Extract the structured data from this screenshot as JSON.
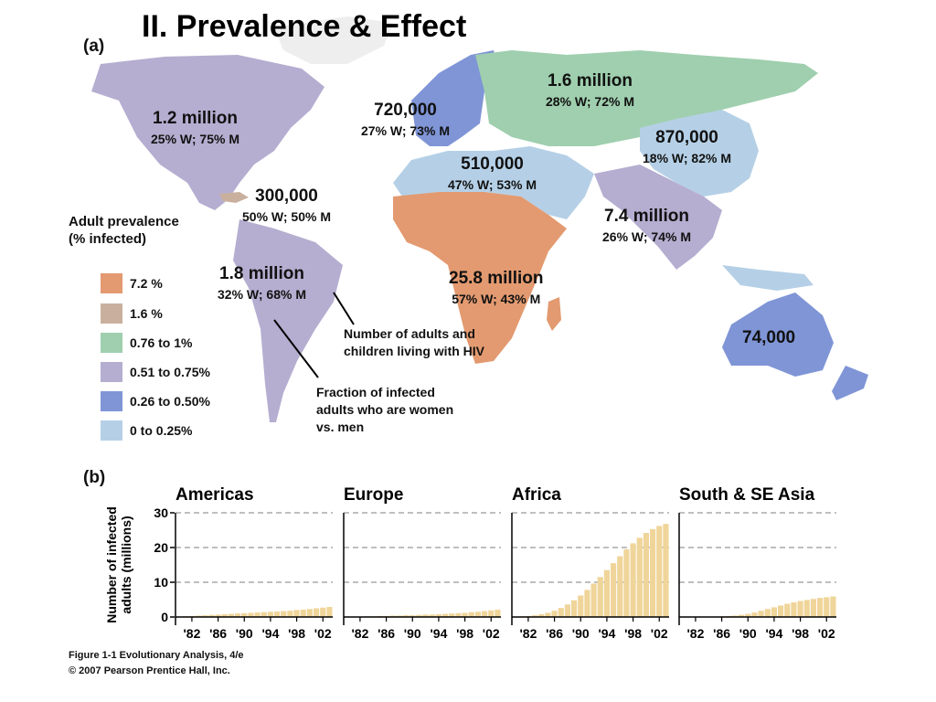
{
  "title": "II. Prevalence & Effect",
  "panel_a_label": "(a)",
  "panel_b_label": "(b)",
  "legend": {
    "title": "Adult prevalence (% infected)",
    "items": [
      {
        "label": "7.2 %",
        "color": "#e39a70"
      },
      {
        "label": "1.6 %",
        "color": "#c9b09e"
      },
      {
        "label": "0.76 to 1%",
        "color": "#9fcfae"
      },
      {
        "label": "0.51 to 0.75%",
        "color": "#b5aed0"
      },
      {
        "label": "0.26 to 0.50%",
        "color": "#7f95d6"
      },
      {
        "label": "0 to 0.25%",
        "color": "#b5d0e6"
      }
    ]
  },
  "regions": [
    {
      "count": "1.2 million",
      "fraction": "25% W; 75% M"
    },
    {
      "count": "300,000",
      "fraction": "50% W; 50% M"
    },
    {
      "count": "1.8 million",
      "fraction": "32% W; 68% M"
    },
    {
      "count": "720,000",
      "fraction": "27% W; 73% M"
    },
    {
      "count": "1.6 million",
      "fraction": "28% W; 72% M"
    },
    {
      "count": "870,000",
      "fraction": "18% W; 82% M"
    },
    {
      "count": "510,000",
      "fraction": "47% W; 53% M"
    },
    {
      "count": "7.4 million",
      "fraction": "26% W; 74% M"
    },
    {
      "count": "25.8 million",
      "fraction": "57% W; 43% M"
    },
    {
      "count": "74,000",
      "fraction": ""
    }
  ],
  "callouts": {
    "number": "Number of adults and children living with HIV",
    "fraction": "Fraction of infected adults who are women vs. men"
  },
  "footer": {
    "line1": "Figure 1-1  Evolutionary Analysis, 4/e",
    "line2": "© 2007 Pearson Prentice Hall, Inc."
  },
  "chart_data": [
    {
      "type": "bar",
      "title": "Americas",
      "ylabel": "Number of infected adults (millions)",
      "ylim": [
        0,
        30
      ],
      "yticks": [
        0,
        10,
        20,
        30
      ],
      "xticks": [
        "'82",
        "'86",
        "'90",
        "'94",
        "'98",
        "'02"
      ],
      "x": [
        1980,
        1981,
        1982,
        1983,
        1984,
        1985,
        1986,
        1987,
        1988,
        1989,
        1990,
        1991,
        1992,
        1993,
        1994,
        1995,
        1996,
        1997,
        1998,
        1999,
        2000,
        2001,
        2002,
        2003
      ],
      "values": [
        0.1,
        0.2,
        0.3,
        0.4,
        0.5,
        0.6,
        0.7,
        0.8,
        0.9,
        1.0,
        1.1,
        1.2,
        1.3,
        1.4,
        1.5,
        1.6,
        1.7,
        1.8,
        2.0,
        2.1,
        2.3,
        2.5,
        2.7,
        2.9
      ],
      "grid": true
    },
    {
      "type": "bar",
      "title": "Europe",
      "ylim": [
        0,
        30
      ],
      "xticks": [
        "'82",
        "'86",
        "'90",
        "'94",
        "'98",
        "'02"
      ],
      "x": [
        1980,
        1981,
        1982,
        1983,
        1984,
        1985,
        1986,
        1987,
        1988,
        1989,
        1990,
        1991,
        1992,
        1993,
        1994,
        1995,
        1996,
        1997,
        1998,
        1999,
        2000,
        2001,
        2002,
        2003
      ],
      "values": [
        0.05,
        0.1,
        0.1,
        0.2,
        0.2,
        0.3,
        0.3,
        0.4,
        0.4,
        0.5,
        0.5,
        0.6,
        0.7,
        0.7,
        0.8,
        0.9,
        1.0,
        1.1,
        1.2,
        1.4,
        1.5,
        1.7,
        1.9,
        2.1
      ],
      "grid": true
    },
    {
      "type": "bar",
      "title": "Africa",
      "ylim": [
        0,
        30
      ],
      "xticks": [
        "'82",
        "'86",
        "'90",
        "'94",
        "'98",
        "'02"
      ],
      "x": [
        1980,
        1981,
        1982,
        1983,
        1984,
        1985,
        1986,
        1987,
        1988,
        1989,
        1990,
        1991,
        1992,
        1993,
        1994,
        1995,
        1996,
        1997,
        1998,
        1999,
        2000,
        2001,
        2002,
        2003
      ],
      "values": [
        0.1,
        0.2,
        0.3,
        0.5,
        0.8,
        1.2,
        1.8,
        2.6,
        3.6,
        4.8,
        6.2,
        7.8,
        9.6,
        11.5,
        13.5,
        15.5,
        17.5,
        19.5,
        21.2,
        22.8,
        24.2,
        25.3,
        26.2,
        26.8
      ],
      "grid": true
    },
    {
      "type": "bar",
      "title": "South & SE Asia",
      "ylim": [
        0,
        30
      ],
      "xticks": [
        "'82",
        "'86",
        "'90",
        "'94",
        "'98",
        "'02"
      ],
      "x": [
        1980,
        1981,
        1982,
        1983,
        1984,
        1985,
        1986,
        1987,
        1988,
        1989,
        1990,
        1991,
        1992,
        1993,
        1994,
        1995,
        1996,
        1997,
        1998,
        1999,
        2000,
        2001,
        2002,
        2003
      ],
      "values": [
        0,
        0,
        0,
        0.05,
        0.1,
        0.1,
        0.2,
        0.3,
        0.4,
        0.6,
        0.9,
        1.3,
        1.8,
        2.3,
        2.8,
        3.3,
        3.8,
        4.2,
        4.6,
        4.9,
        5.2,
        5.5,
        5.7,
        5.9
      ],
      "grid": true
    }
  ]
}
